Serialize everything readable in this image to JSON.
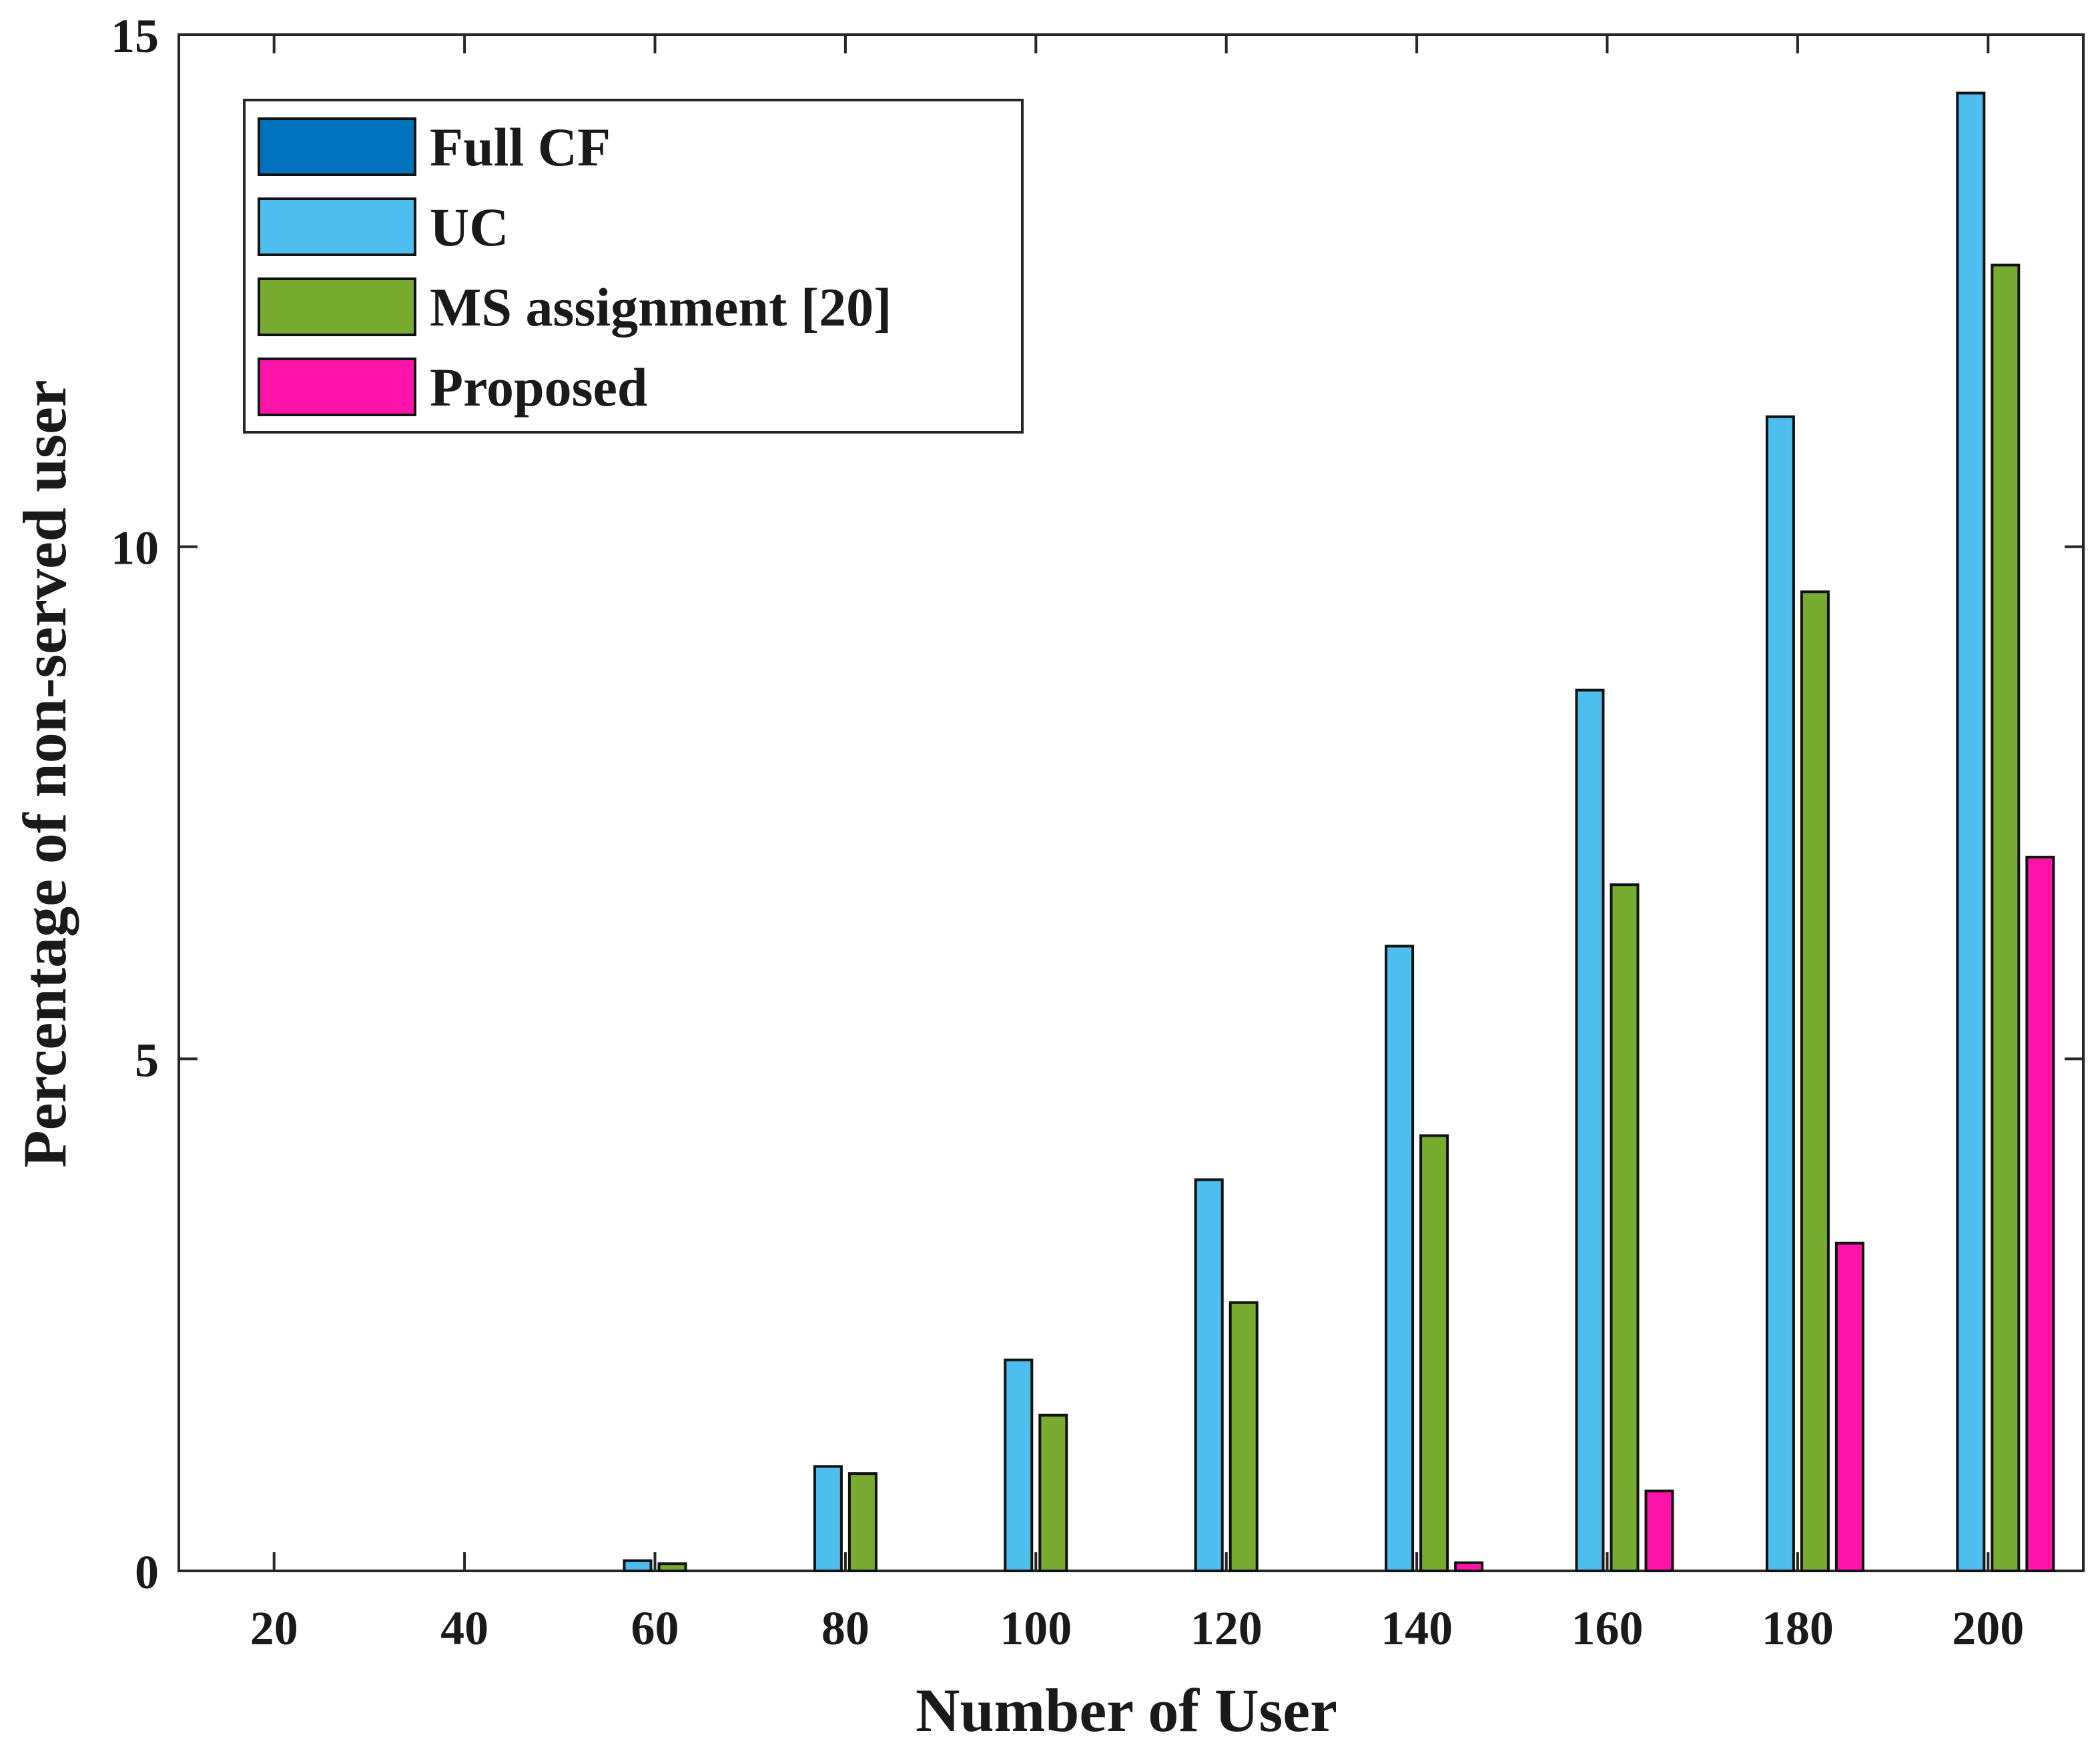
{
  "chart_data": {
    "type": "bar",
    "xlabel": "Number of User",
    "ylabel": "Percentage of non-served user",
    "categories": [
      "20",
      "40",
      "60",
      "80",
      "100",
      "120",
      "140",
      "160",
      "180",
      "200"
    ],
    "ylim": [
      0,
      15
    ],
    "yticks": [
      "0",
      "5",
      "10",
      "15"
    ],
    "grid": false,
    "legend_position": "top-left",
    "series": [
      {
        "name": "Full CF",
        "color": "#0072bd",
        "values": [
          0,
          0,
          0,
          0,
          0,
          0,
          0,
          0,
          0,
          0
        ]
      },
      {
        "name": "UC",
        "color": "#4dbeee",
        "values": [
          0,
          0,
          0.1,
          1.02,
          2.06,
          3.82,
          6.1,
          8.6,
          11.27,
          14.43
        ]
      },
      {
        "name": "MS assignment [20]",
        "color": "#77ac30",
        "values": [
          0,
          0,
          0.07,
          0.95,
          1.52,
          2.62,
          4.25,
          6.7,
          9.56,
          12.75
        ]
      },
      {
        "name": "Proposed",
        "color": "#ff14a9",
        "values": [
          0,
          0,
          0,
          0,
          0,
          0,
          0.08,
          0.78,
          3.2,
          6.97
        ]
      }
    ]
  }
}
